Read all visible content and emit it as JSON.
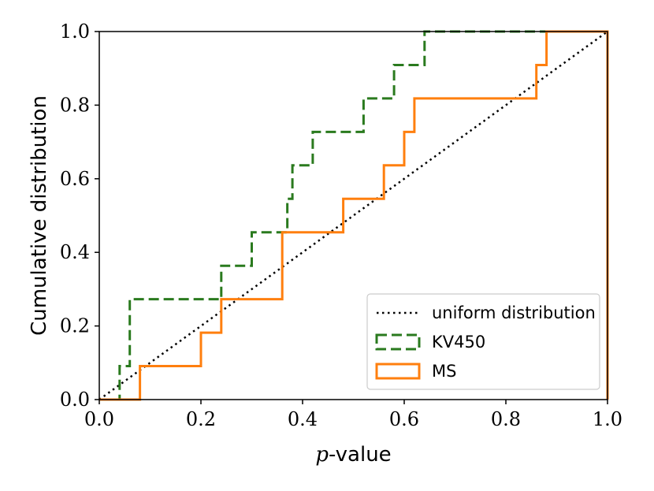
{
  "chart_data": {
    "type": "line",
    "title": "",
    "xlabel_italic": "p",
    "xlabel": "-value",
    "ylabel": "Cumulative distribution",
    "xlim": [
      0.0,
      1.0
    ],
    "ylim": [
      0.0,
      1.0
    ],
    "xticks": [
      "0.0",
      "0.2",
      "0.4",
      "0.6",
      "0.8",
      "1.0"
    ],
    "yticks": [
      "0.0",
      "0.2",
      "0.4",
      "0.6",
      "0.8",
      "1.0"
    ],
    "grid": false,
    "legend_position": "lower-right",
    "series": [
      {
        "name": "uniform distribution",
        "style": "dotted",
        "color": "#000000",
        "x": [
          0.0,
          1.0
        ],
        "y": [
          0.0,
          1.0
        ]
      },
      {
        "name": "KV450",
        "style": "dashed-step",
        "color": "#2a7a1e",
        "x": [
          0.0,
          0.04,
          0.04,
          0.06,
          0.06,
          0.24,
          0.24,
          0.3,
          0.3,
          0.36,
          0.36,
          0.37,
          0.37,
          0.38,
          0.38,
          0.42,
          0.42,
          0.52,
          0.52,
          0.58,
          0.58,
          0.64,
          0.64,
          1.0,
          1.0
        ],
        "y": [
          0.0,
          0.0,
          0.0909,
          0.0909,
          0.2727,
          0.2727,
          0.3636,
          0.3636,
          0.4545,
          0.4545,
          0.4545,
          0.4545,
          0.5455,
          0.5455,
          0.6364,
          0.6364,
          0.7273,
          0.7273,
          0.8182,
          0.8182,
          0.9091,
          0.9091,
          1.0,
          1.0,
          0.0
        ]
      },
      {
        "name": "MS",
        "style": "solid-step",
        "color": "#ff7f0e",
        "x": [
          0.0,
          0.08,
          0.08,
          0.2,
          0.2,
          0.24,
          0.24,
          0.36,
          0.36,
          0.48,
          0.48,
          0.56,
          0.56,
          0.6,
          0.6,
          0.62,
          0.62,
          0.86,
          0.86,
          0.88,
          0.88,
          1.0,
          1.0
        ],
        "y": [
          0.0,
          0.0,
          0.0909,
          0.0909,
          0.1818,
          0.1818,
          0.2727,
          0.2727,
          0.4545,
          0.4545,
          0.5455,
          0.5455,
          0.6364,
          0.6364,
          0.7273,
          0.7273,
          0.8182,
          0.8182,
          0.9091,
          0.9091,
          1.0,
          1.0,
          0.0
        ]
      }
    ]
  }
}
